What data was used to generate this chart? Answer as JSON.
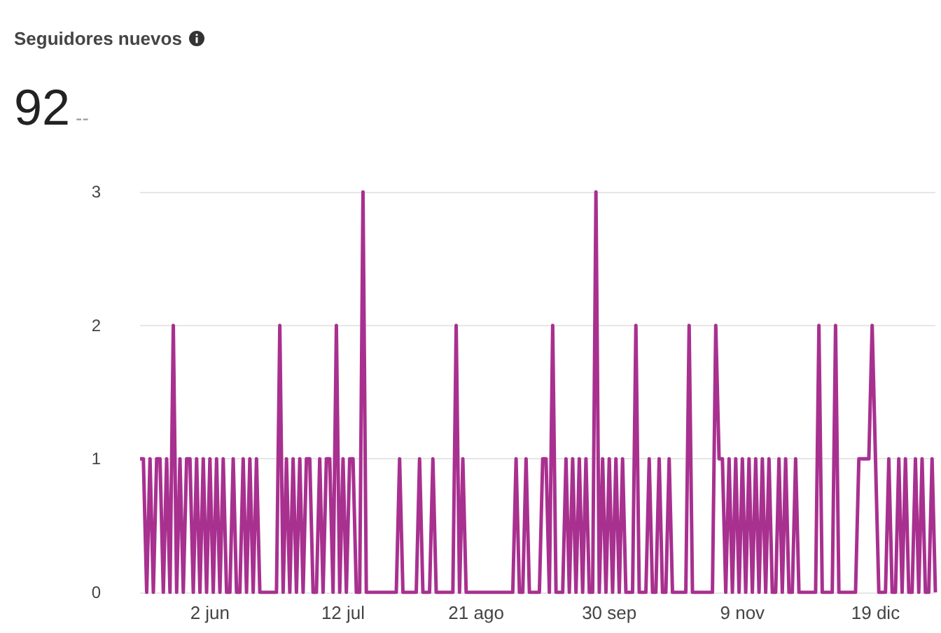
{
  "chart_data": {
    "type": "line",
    "title": "Seguidores nuevos",
    "subtitle": "92",
    "annotations": [
      "--"
    ],
    "categories": [
      null,
      null,
      null,
      null,
      null,
      null,
      null,
      null,
      null,
      null,
      null,
      null,
      null,
      null,
      null,
      null,
      null,
      null,
      null,
      null,
      null,
      "2 jun",
      null,
      null,
      null,
      null,
      null,
      null,
      null,
      null,
      null,
      null,
      null,
      null,
      null,
      null,
      null,
      null,
      null,
      null,
      null,
      null,
      null,
      null,
      null,
      null,
      null,
      null,
      null,
      null,
      null,
      null,
      null,
      null,
      null,
      null,
      null,
      null,
      null,
      null,
      null,
      "12 jul",
      null,
      null,
      null,
      null,
      null,
      null,
      null,
      null,
      null,
      null,
      null,
      null,
      null,
      null,
      null,
      null,
      null,
      null,
      null,
      null,
      null,
      null,
      null,
      null,
      null,
      null,
      null,
      null,
      null,
      null,
      null,
      null,
      null,
      null,
      null,
      null,
      null,
      null,
      null,
      "21 ago",
      null,
      null,
      null,
      null,
      null,
      null,
      null,
      null,
      null,
      null,
      null,
      null,
      null,
      null,
      null,
      null,
      null,
      null,
      null,
      null,
      null,
      null,
      null,
      null,
      null,
      null,
      null,
      null,
      null,
      null,
      null,
      null,
      null,
      null,
      null,
      null,
      null,
      null,
      null,
      "30 sep",
      null,
      null,
      null,
      null,
      null,
      null,
      null,
      null,
      null,
      null,
      null,
      null,
      null,
      null,
      null,
      null,
      null,
      null,
      null,
      null,
      null,
      null,
      null,
      null,
      null,
      null,
      null,
      null,
      null,
      null,
      null,
      null,
      null,
      null,
      null,
      null,
      null,
      null,
      null,
      "9 nov",
      null,
      null,
      null,
      null,
      null,
      null,
      null,
      null,
      null,
      null,
      null,
      null,
      null,
      null,
      null,
      null,
      null,
      null,
      null,
      null,
      null,
      null,
      null,
      null,
      null,
      null,
      null,
      null,
      null,
      null,
      null,
      null,
      null,
      null,
      null,
      null,
      null,
      null,
      null,
      "19 dic",
      null,
      null,
      null,
      null,
      null,
      null,
      null,
      null,
      null,
      null,
      null,
      null,
      null,
      null,
      null,
      null,
      null,
      null
    ],
    "series": [
      {
        "color": "#a8308f",
        "values": [
          1,
          1,
          0,
          1,
          0,
          1,
          1,
          0,
          1,
          0,
          2,
          0,
          1,
          0,
          1,
          1,
          0,
          1,
          0,
          1,
          0,
          1,
          0,
          1,
          0,
          1,
          0,
          0,
          1,
          0,
          0,
          1,
          0,
          1,
          0,
          1,
          0,
          0,
          0,
          0,
          0,
          0,
          2,
          0,
          1,
          0,
          1,
          0,
          1,
          0,
          1,
          1,
          0,
          0,
          1,
          0,
          1,
          1,
          0,
          2,
          0,
          1,
          0,
          1,
          1,
          0,
          0,
          3,
          0,
          0,
          0,
          0,
          0,
          0,
          0,
          0,
          0,
          0,
          1,
          0,
          0,
          0,
          0,
          0,
          1,
          0,
          0,
          0,
          1,
          0,
          0,
          0,
          0,
          0,
          0,
          2,
          0,
          1,
          0,
          0,
          0,
          0,
          0,
          0,
          0,
          0,
          0,
          0,
          0,
          0,
          0,
          0,
          0,
          1,
          0,
          0,
          1,
          0,
          0,
          0,
          0,
          1,
          1,
          0,
          2,
          0,
          0,
          0,
          1,
          0,
          1,
          0,
          1,
          0,
          1,
          0,
          0,
          3,
          0,
          1,
          0,
          1,
          0,
          1,
          0,
          1,
          0,
          0,
          0,
          2,
          0,
          0,
          0,
          1,
          0,
          0,
          1,
          0,
          0,
          1,
          0,
          0,
          0,
          0,
          0,
          2,
          0,
          0,
          0,
          0,
          0,
          0,
          0,
          2,
          1,
          1,
          0,
          1,
          0,
          1,
          0,
          1,
          0,
          1,
          0,
          1,
          0,
          1,
          0,
          1,
          0,
          0,
          1,
          0,
          1,
          0,
          0,
          1,
          0,
          0,
          0,
          0,
          0,
          0,
          2,
          0,
          0,
          0,
          0,
          2,
          0,
          0,
          0,
          0,
          0,
          0,
          1,
          1,
          1,
          1,
          2,
          1,
          0,
          0,
          0,
          1,
          0,
          0,
          1,
          0,
          1,
          0,
          0,
          1,
          0,
          1,
          0,
          0,
          1,
          0
        ]
      }
    ],
    "ylim": [
      0,
      3
    ],
    "yticks": [
      0,
      1,
      2,
      3
    ],
    "grid": "y",
    "marker": "none"
  }
}
